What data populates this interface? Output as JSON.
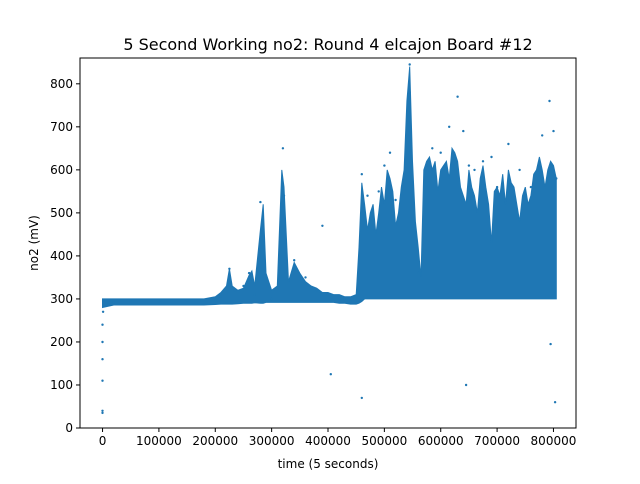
{
  "chart_data": {
    "type": "scatter",
    "title": "5 Second Working no2: Round 4 elcajon Board #12",
    "xlabel": "time (5 seconds)",
    "ylabel": "no2 (mV)",
    "xlim": [
      -40000,
      840000
    ],
    "ylim": [
      0,
      860
    ],
    "xticks": [
      0,
      100000,
      200000,
      300000,
      400000,
      500000,
      600000,
      700000,
      800000
    ],
    "xtick_labels": [
      "0",
      "100000",
      "200000",
      "300000",
      "400000",
      "500000",
      "600000",
      "700000",
      "800000"
    ],
    "yticks": [
      0,
      100,
      200,
      300,
      400,
      500,
      600,
      700,
      800
    ],
    "ytick_labels": [
      "0",
      "100",
      "200",
      "300",
      "400",
      "500",
      "600",
      "700",
      "800"
    ],
    "grid": false,
    "legend": "none",
    "marker_color": "#1f77b4",
    "series": [
      {
        "name": "",
        "points": [
          [
            0,
            35
          ],
          [
            0,
            40
          ],
          [
            0,
            110
          ],
          [
            0,
            160
          ],
          [
            0,
            200
          ],
          [
            0,
            240
          ],
          [
            1000,
            270
          ],
          [
            2000,
            295
          ],
          [
            20000,
            292
          ],
          [
            50000,
            295
          ],
          [
            100000,
            294
          ],
          [
            150000,
            296
          ],
          [
            200000,
            297
          ],
          [
            210000,
            305
          ],
          [
            225000,
            370
          ],
          [
            235000,
            320
          ],
          [
            250000,
            330
          ],
          [
            260000,
            360
          ],
          [
            270000,
            310
          ],
          [
            280000,
            525
          ],
          [
            285000,
            440
          ],
          [
            300000,
            300
          ],
          [
            320000,
            650
          ],
          [
            322000,
            540
          ],
          [
            340000,
            390
          ],
          [
            360000,
            350
          ],
          [
            380000,
            320
          ],
          [
            390000,
            470
          ],
          [
            400000,
            310
          ],
          [
            405000,
            125
          ],
          [
            430000,
            300
          ],
          [
            440000,
            295
          ],
          [
            460000,
            590
          ],
          [
            460000,
            70
          ],
          [
            470000,
            540
          ],
          [
            490000,
            550
          ],
          [
            500000,
            610
          ],
          [
            510000,
            640
          ],
          [
            520000,
            530
          ],
          [
            545000,
            845
          ],
          [
            545000,
            780
          ],
          [
            550000,
            560
          ],
          [
            560000,
            360
          ],
          [
            575000,
            610
          ],
          [
            585000,
            650
          ],
          [
            600000,
            640
          ],
          [
            615000,
            700
          ],
          [
            630000,
            770
          ],
          [
            640000,
            690
          ],
          [
            645000,
            100
          ],
          [
            650000,
            610
          ],
          [
            660000,
            600
          ],
          [
            675000,
            620
          ],
          [
            690000,
            630
          ],
          [
            700000,
            560
          ],
          [
            720000,
            660
          ],
          [
            740000,
            600
          ],
          [
            760000,
            560
          ],
          [
            780000,
            680
          ],
          [
            793000,
            760
          ],
          [
            795000,
            195
          ],
          [
            800000,
            690
          ],
          [
            803000,
            60
          ],
          [
            805000,
            580
          ]
        ]
      }
    ],
    "band": {
      "x": [
        0,
        20000,
        40000,
        60000,
        80000,
        100000,
        120000,
        140000,
        160000,
        180000,
        200000,
        210000,
        220000,
        225000,
        230000,
        240000,
        250000,
        260000,
        265000,
        270000,
        280000,
        285000,
        290000,
        300000,
        310000,
        318000,
        322000,
        330000,
        340000,
        350000,
        360000,
        370000,
        380000,
        390000,
        400000,
        410000,
        420000,
        430000,
        440000,
        450000,
        455000,
        460000,
        465000,
        470000,
        475000,
        480000,
        485000,
        490000,
        495000,
        500000,
        505000,
        510000,
        515000,
        520000,
        525000,
        530000,
        535000,
        540000,
        545000,
        550000,
        555000,
        560000,
        565000,
        570000,
        575000,
        580000,
        585000,
        590000,
        595000,
        600000,
        605000,
        610000,
        615000,
        620000,
        625000,
        630000,
        635000,
        640000,
        645000,
        650000,
        655000,
        660000,
        665000,
        670000,
        675000,
        680000,
        685000,
        690000,
        695000,
        700000,
        705000,
        710000,
        715000,
        720000,
        725000,
        730000,
        735000,
        740000,
        745000,
        750000,
        755000,
        760000,
        765000,
        770000,
        775000,
        780000,
        785000,
        790000,
        795000,
        800000,
        805000
      ],
      "low": [
        280,
        286,
        286,
        286,
        286,
        286,
        286,
        286,
        286,
        286,
        287,
        288,
        288,
        288,
        288,
        289,
        290,
        290,
        290,
        291,
        290,
        290,
        292,
        292,
        292,
        292,
        292,
        292,
        292,
        292,
        292,
        292,
        292,
        292,
        292,
        292,
        290,
        290,
        288,
        288,
        290,
        294,
        300,
        300,
        300,
        300,
        300,
        300,
        300,
        300,
        300,
        300,
        300,
        300,
        300,
        300,
        300,
        300,
        300,
        300,
        300,
        300,
        300,
        300,
        300,
        300,
        300,
        300,
        300,
        300,
        300,
        300,
        300,
        300,
        300,
        300,
        300,
        300,
        300,
        300,
        300,
        300,
        300,
        300,
        300,
        300,
        300,
        300,
        300,
        300,
        300,
        300,
        300,
        300,
        300,
        300,
        300,
        300,
        300,
        300,
        300,
        300,
        300,
        300,
        300,
        300,
        300,
        300,
        300,
        300,
        300
      ],
      "high": [
        300,
        300,
        300,
        300,
        300,
        300,
        300,
        300,
        300,
        300,
        305,
        315,
        330,
        370,
        330,
        320,
        325,
        355,
        365,
        330,
        460,
        520,
        360,
        320,
        330,
        600,
        560,
        340,
        385,
        360,
        340,
        330,
        325,
        315,
        315,
        310,
        310,
        305,
        305,
        310,
        420,
        570,
        520,
        460,
        500,
        520,
        450,
        500,
        560,
        520,
        600,
        580,
        550,
        470,
        500,
        560,
        600,
        760,
        840,
        620,
        480,
        420,
        350,
        600,
        620,
        630,
        600,
        620,
        550,
        600,
        610,
        620,
        580,
        650,
        640,
        620,
        560,
        540,
        520,
        600,
        560,
        540,
        500,
        580,
        610,
        560,
        520,
        430,
        550,
        560,
        540,
        590,
        520,
        600,
        570,
        560,
        520,
        480,
        540,
        560,
        520,
        540,
        590,
        600,
        630,
        600,
        560,
        600,
        620,
        610,
        580
      ]
    }
  }
}
